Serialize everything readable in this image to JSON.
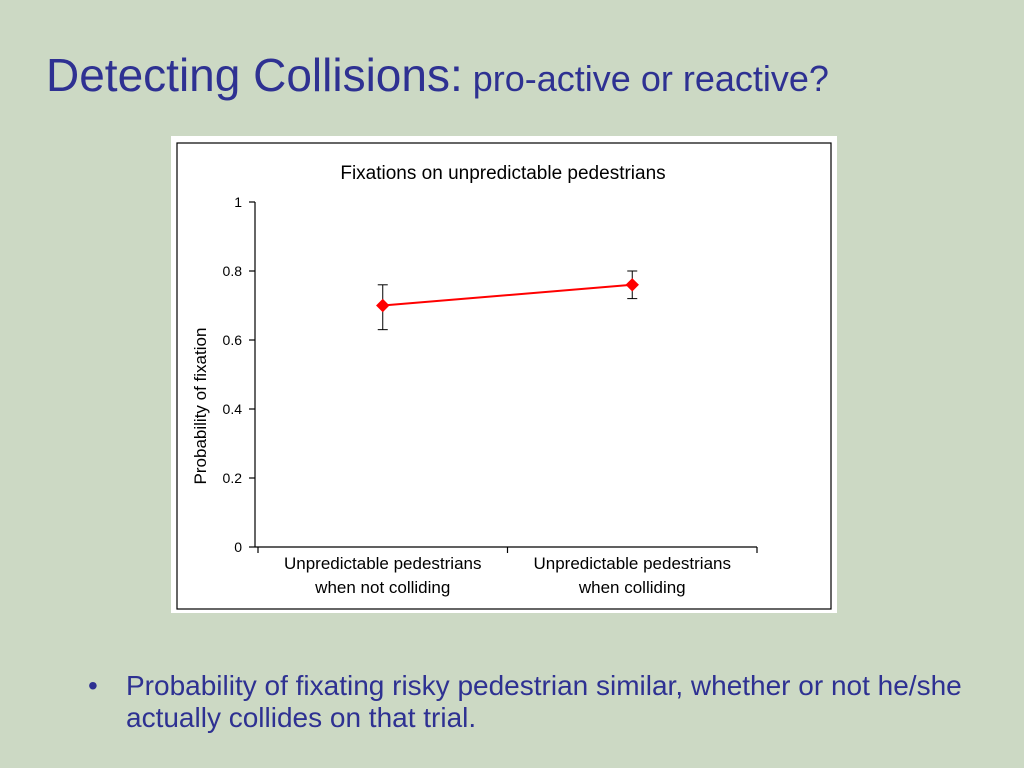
{
  "slide": {
    "title_main": "Detecting Collisions:",
    "title_sub": " pro-active or reactive?",
    "bullets": [
      "Probability of fixating risky pedestrian similar, whether or not he/she actually collides on that trial."
    ],
    "bullet_glyph": "•"
  },
  "chart_data": {
    "type": "line",
    "title": "Fixations on unpredictable pedestrians",
    "xlabel": "",
    "ylabel": "Probability of fixation",
    "categories": [
      [
        "Unpredictable pedestrians",
        "when not colliding"
      ],
      [
        "Unpredictable pedestrians",
        "when colliding"
      ]
    ],
    "series": [
      {
        "values": [
          0.7,
          0.76
        ],
        "error_low": [
          0.63,
          0.72
        ],
        "error_high": [
          0.76,
          0.8
        ],
        "color": "#ff0000"
      }
    ],
    "ylim": [
      0,
      1
    ],
    "yticks": [
      0,
      0.2,
      0.4,
      0.6,
      0.8,
      1
    ],
    "ytick_labels": [
      "0",
      "0.2",
      "0.4",
      "0.6",
      "0.8",
      "1"
    ],
    "grid": false,
    "legend": "none"
  }
}
